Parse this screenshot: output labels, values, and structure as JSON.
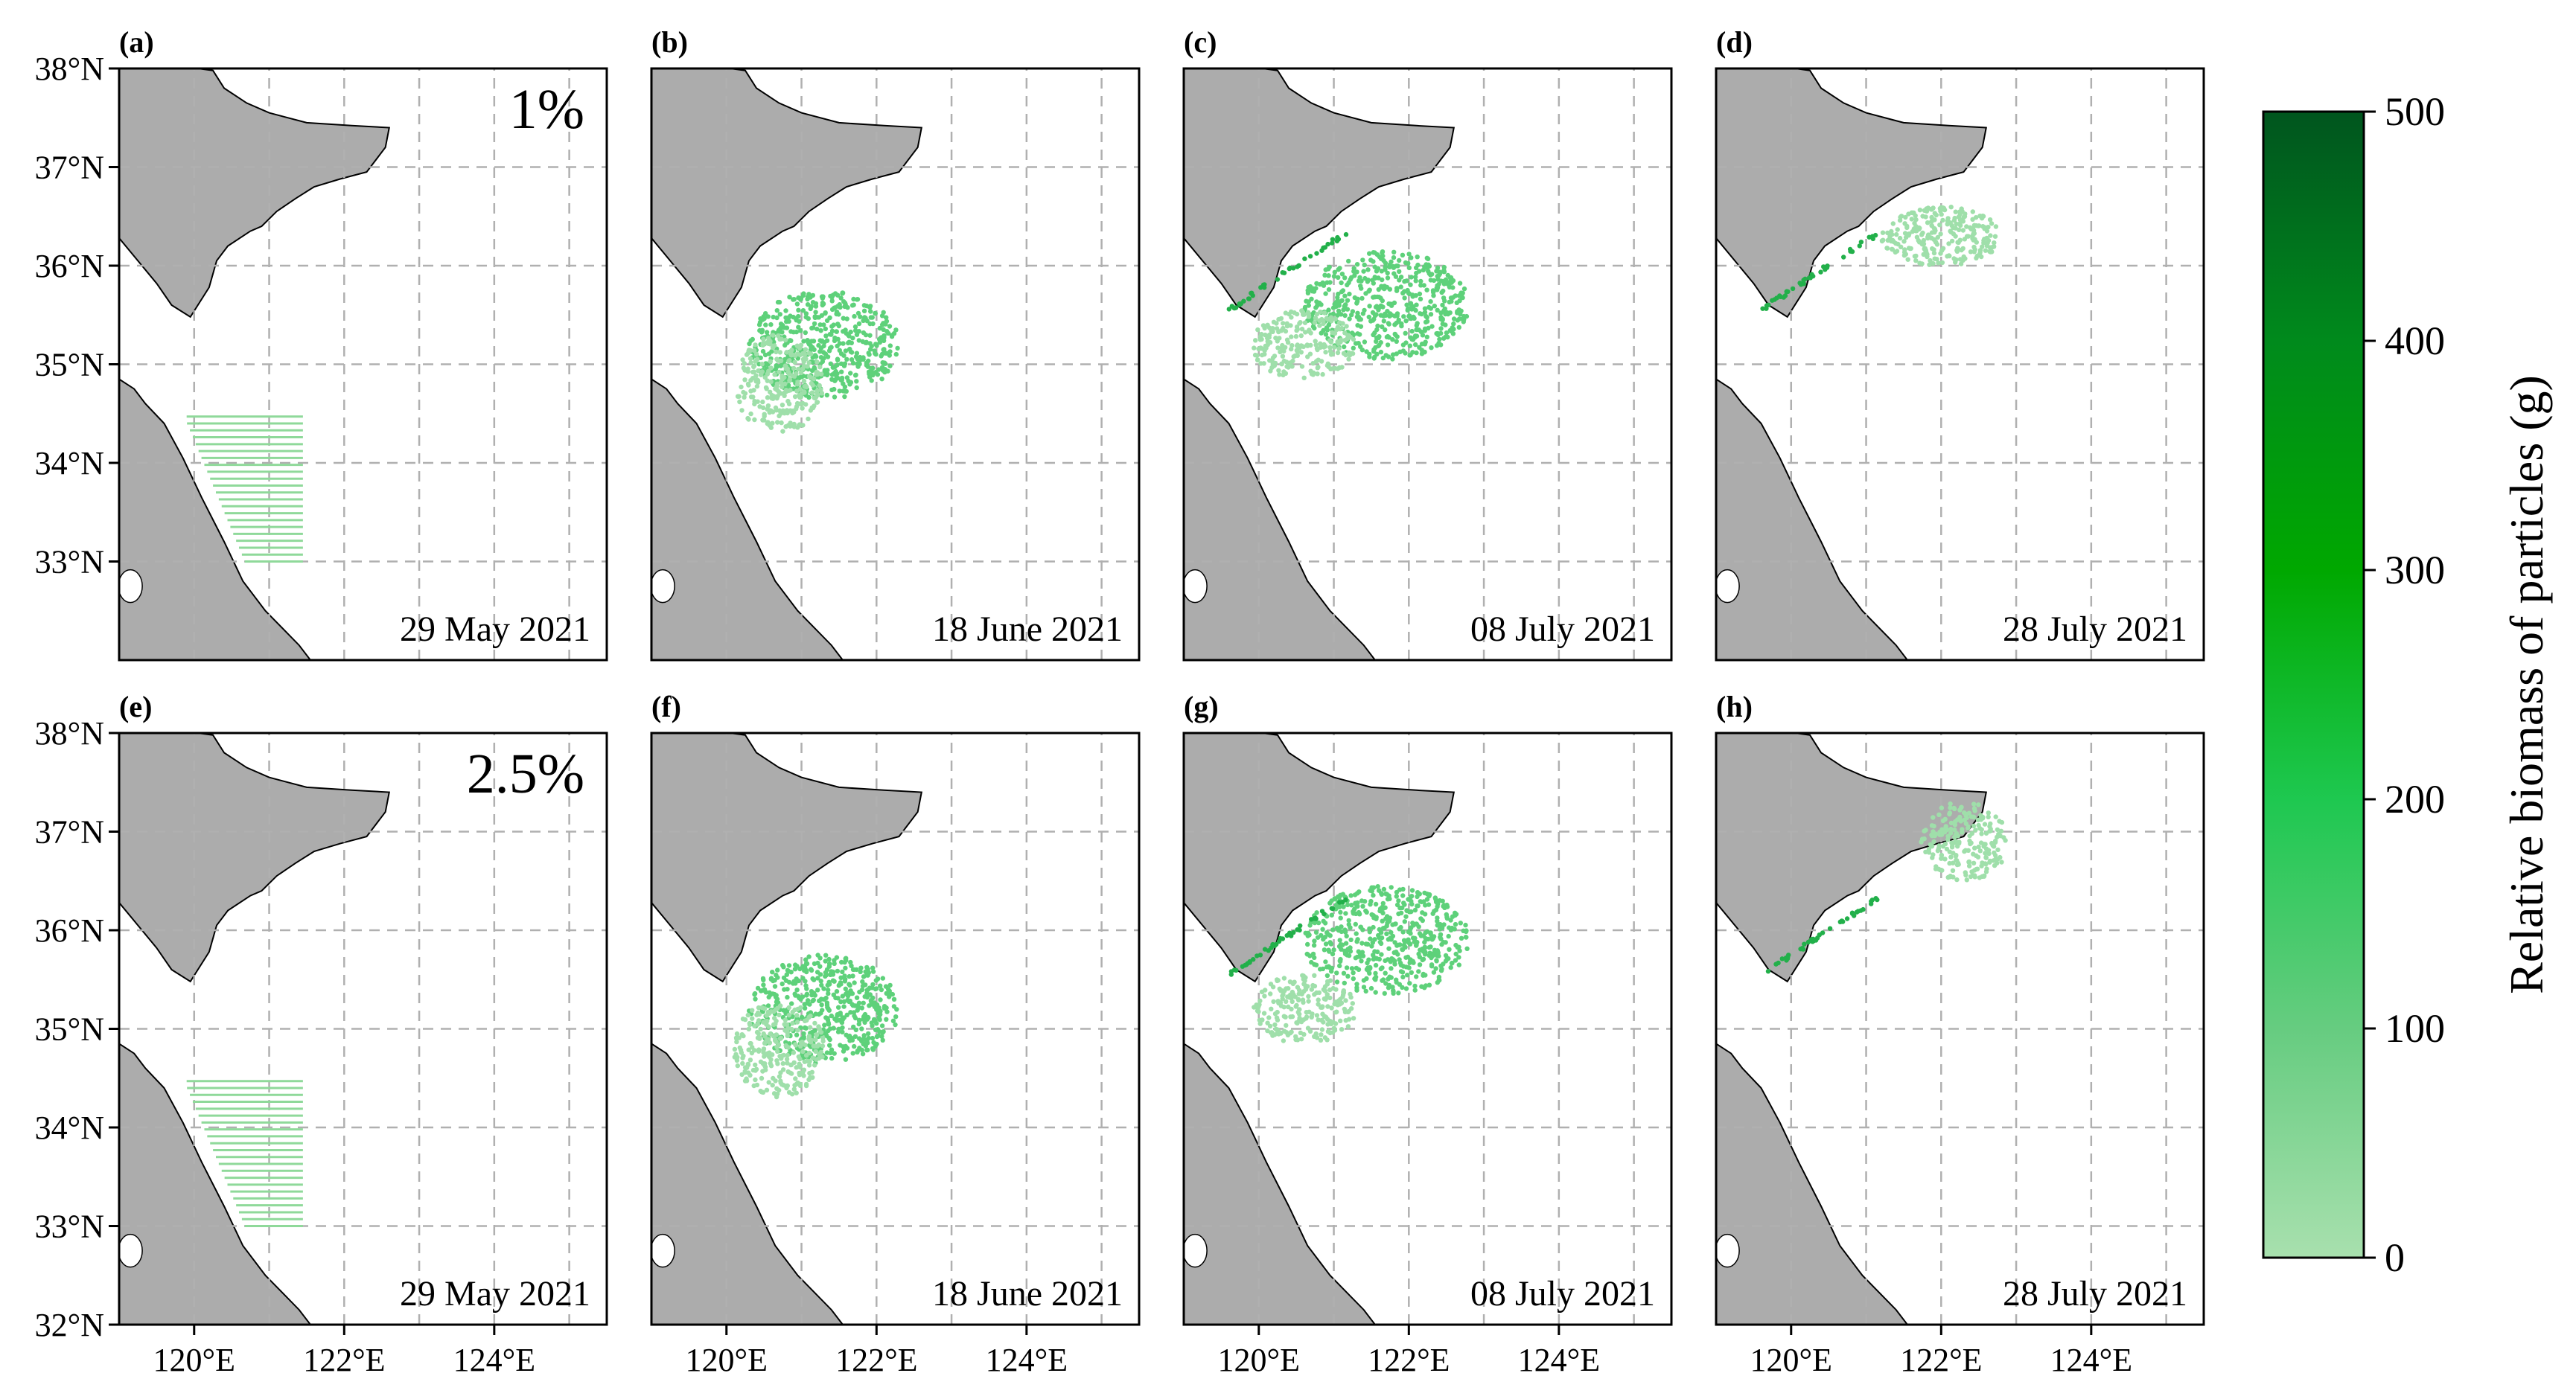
{
  "figure": {
    "panels": [
      {
        "label": "(a)",
        "date": "29 May 2021",
        "fraction": "1%",
        "stage": 0,
        "bio": 0
      },
      {
        "label": "(b)",
        "date": "18 June 2021",
        "fraction": "",
        "stage": 1,
        "bio": 0
      },
      {
        "label": "(c)",
        "date": "08 July 2021",
        "fraction": "",
        "stage": 2,
        "bio": 0
      },
      {
        "label": "(d)",
        "date": "28 July 2021",
        "fraction": "",
        "stage": 3,
        "bio": 0
      },
      {
        "label": "(e)",
        "date": "29 May 2021",
        "fraction": "2.5%",
        "stage": 0,
        "bio": 1
      },
      {
        "label": "(f)",
        "date": "18 June 2021",
        "fraction": "",
        "stage": 1,
        "bio": 1
      },
      {
        "label": "(g)",
        "date": "08 July 2021",
        "fraction": "",
        "stage": 2,
        "bio": 1
      },
      {
        "label": "(h)",
        "date": "28 July 2021",
        "fraction": "",
        "stage": 3,
        "bio": 1
      }
    ],
    "lat_labels": [
      "32°N",
      "33°N",
      "34°N",
      "35°N",
      "36°N",
      "37°N",
      "38°N"
    ],
    "lon_labels": [
      "120°E",
      "122°E",
      "124°E"
    ],
    "colorbar": {
      "label": "Relative biomass of particles (g)",
      "ticks": [
        "0",
        "100",
        "200",
        "300",
        "400",
        "500"
      ],
      "min": 0,
      "max": 500,
      "colors": [
        "#a8e0ae",
        "#66cc80",
        "#1ec850",
        "#00a800",
        "#008a1c",
        "#00551e"
      ]
    },
    "colors": {
      "land": "#acacac",
      "coast": "#000000",
      "grid": "#b0b0b0",
      "release": "#8fd99a",
      "light": "#9fdfaa",
      "mid": "#5ed17a",
      "dark": "#22b04a"
    }
  },
  "chart_data": {
    "type": "scatter",
    "map_extent": {
      "lon": [
        119,
        125.5
      ],
      "lat": [
        32,
        38
      ]
    },
    "release_region": {
      "lon": [
        119.8,
        121.5
      ],
      "lat": [
        33.0,
        34.5
      ]
    },
    "scenarios": [
      "1%",
      "2.5%"
    ],
    "dates": [
      "29 May 2021",
      "18 June 2021",
      "08 July 2021",
      "28 July 2021"
    ]
  }
}
